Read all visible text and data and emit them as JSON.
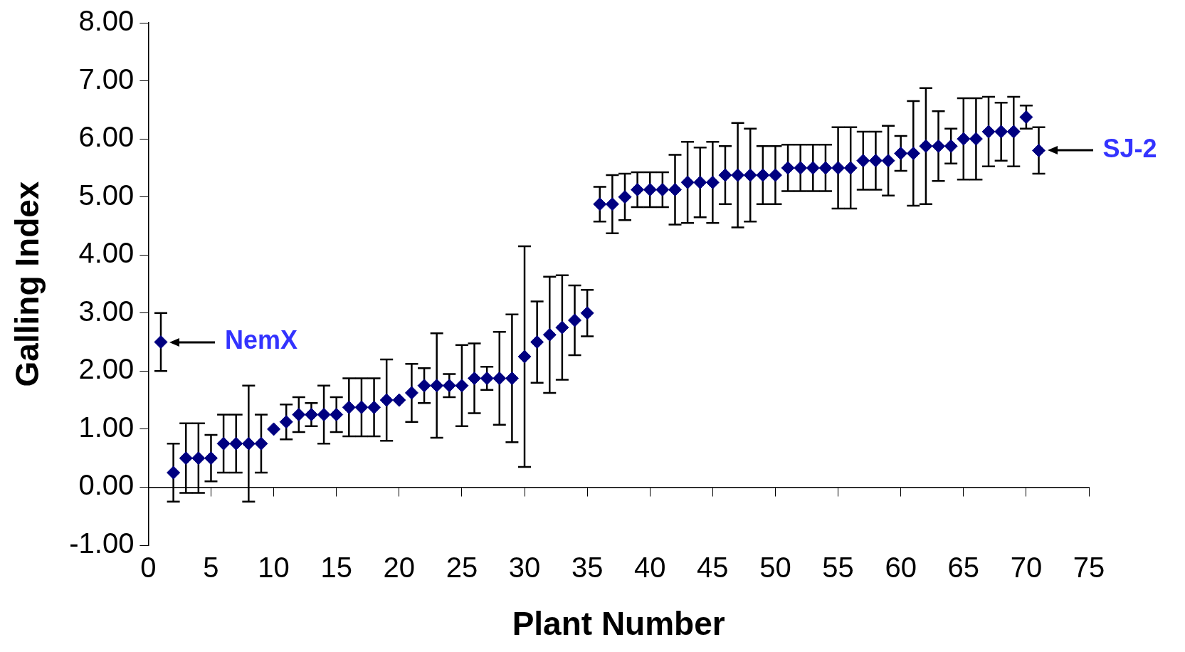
{
  "chart_data": {
    "type": "scatter",
    "xlabel": "Plant Number",
    "ylabel": "Galling Index",
    "x": [
      1,
      2,
      3,
      4,
      5,
      6,
      7,
      8,
      9,
      10,
      11,
      12,
      13,
      14,
      15,
      16,
      17,
      18,
      19,
      20,
      21,
      22,
      23,
      24,
      25,
      26,
      27,
      28,
      29,
      30,
      31,
      32,
      33,
      34,
      35,
      36,
      37,
      38,
      39,
      40,
      41,
      42,
      43,
      44,
      45,
      46,
      47,
      48,
      49,
      50,
      51,
      52,
      53,
      54,
      55,
      56,
      57,
      58,
      59,
      60,
      61,
      62,
      63,
      64,
      65,
      66,
      67,
      68,
      69,
      70,
      71
    ],
    "series": [
      {
        "color": "#000080",
        "values": [
          2.5,
          0.25,
          0.5,
          0.5,
          0.5,
          0.75,
          0.75,
          0.75,
          0.75,
          1.0,
          1.125,
          1.25,
          1.25,
          1.25,
          1.25,
          1.375,
          1.375,
          1.375,
          1.5,
          1.5,
          1.625,
          1.75,
          1.75,
          1.75,
          1.75,
          1.875,
          1.875,
          1.875,
          1.875,
          2.25,
          2.5,
          2.625,
          2.75,
          2.875,
          3.0,
          4.875,
          4.875,
          5.0,
          5.125,
          5.125,
          5.125,
          5.125,
          5.25,
          5.25,
          5.25,
          5.375,
          5.375,
          5.375,
          5.375,
          5.375,
          5.5,
          5.5,
          5.5,
          5.5,
          5.5,
          5.5,
          5.625,
          5.625,
          5.625,
          5.75,
          5.75,
          5.875,
          5.875,
          5.875,
          6.0,
          6.0,
          6.125,
          6.125,
          6.125,
          6.375,
          5.8
        ],
        "errors": [
          0.5,
          0.5,
          0.6,
          0.6,
          0.4,
          0.5,
          0.5,
          1.0,
          0.5,
          null,
          0.3,
          0.3,
          0.2,
          0.5,
          0.3,
          0.5,
          0.5,
          0.5,
          0.7,
          null,
          0.5,
          0.3,
          0.9,
          0.2,
          0.7,
          0.6,
          0.2,
          0.8,
          1.1,
          1.9,
          0.7,
          1.0,
          0.9,
          0.6,
          0.4,
          0.3,
          0.5,
          0.4,
          0.3,
          0.3,
          0.3,
          0.6,
          0.7,
          0.6,
          0.7,
          0.5,
          0.9,
          0.8,
          0.5,
          0.5,
          0.4,
          0.4,
          0.4,
          0.4,
          0.7,
          0.7,
          0.5,
          0.5,
          0.6,
          0.3,
          0.9,
          1.0,
          0.6,
          0.3,
          0.7,
          0.7,
          0.6,
          0.5,
          0.6,
          0.2,
          0.4
        ]
      }
    ],
    "annotations": [
      {
        "text": "NemX",
        "x": 1,
        "y": 2.5
      },
      {
        "text": "SJ-2",
        "x": 71,
        "y": 5.8
      }
    ],
    "xlim": [
      0,
      75
    ],
    "xticks": [
      0,
      5,
      10,
      15,
      20,
      25,
      30,
      35,
      40,
      45,
      50,
      55,
      60,
      65,
      70,
      75
    ],
    "ylim": [
      -1,
      8
    ],
    "yticks": [
      {
        "value": -1,
        "label": "-1.00"
      },
      {
        "value": 0,
        "label": "0.00"
      },
      {
        "value": 1,
        "label": "1.00"
      },
      {
        "value": 2,
        "label": "2.00"
      },
      {
        "value": 3,
        "label": "3.00"
      },
      {
        "value": 4,
        "label": "4.00"
      },
      {
        "value": 5,
        "label": "5.00"
      },
      {
        "value": 6,
        "label": "6.00"
      },
      {
        "value": 7,
        "label": "7.00"
      },
      {
        "value": 8,
        "label": "8.00"
      }
    ],
    "grid": false,
    "legend": false,
    "marker": "diamond"
  }
}
